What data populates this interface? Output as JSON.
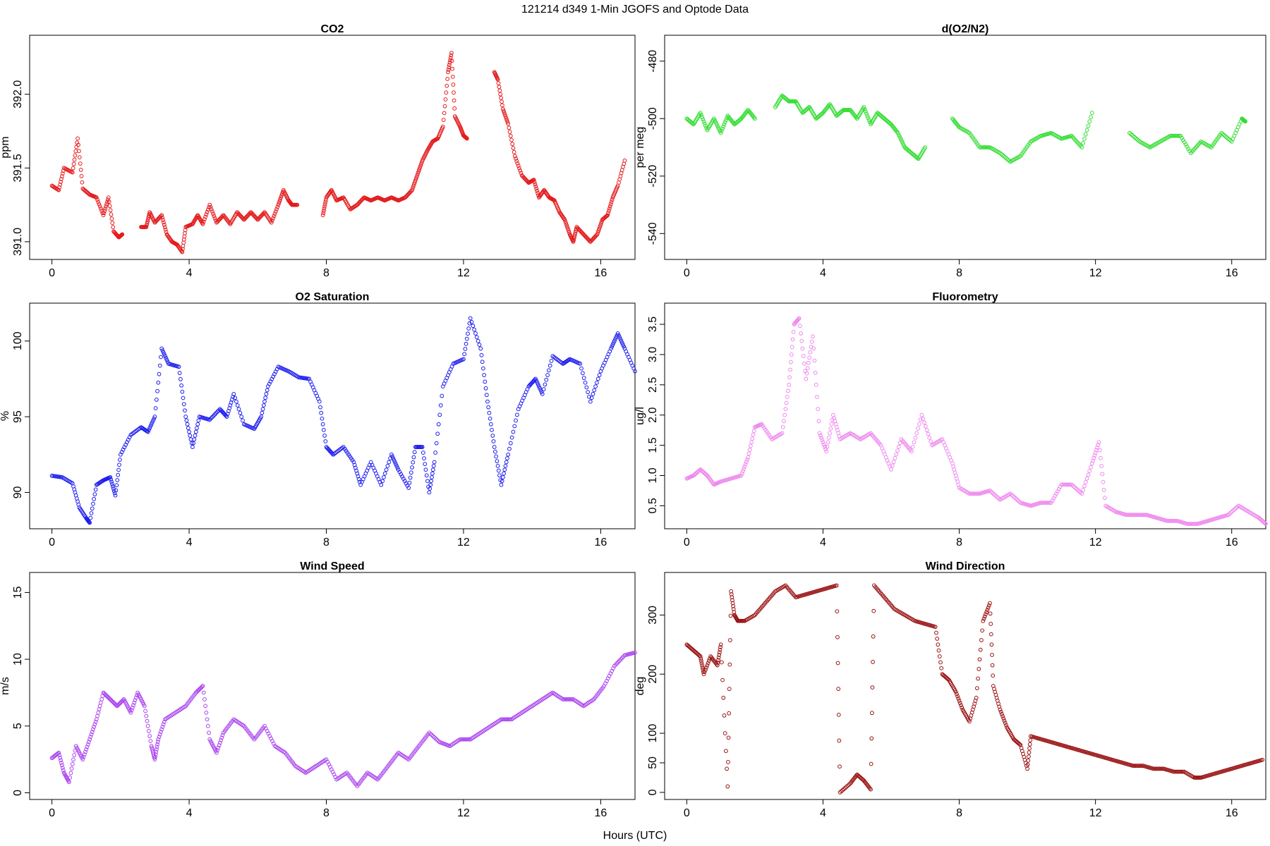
{
  "figure": {
    "title": "121214   d349   1-Min  JGOFS and Optode Data",
    "xlabel": "Hours (UTC)"
  },
  "chart_data": [
    {
      "id": "co2",
      "type": "scatter",
      "title": "CO2",
      "ylabel": "ppm",
      "color": "#e31a1c",
      "xlim": [
        -0.65,
        17
      ],
      "ylim": [
        390.88,
        392.4
      ],
      "xticks": [
        0,
        4,
        8,
        12,
        16
      ],
      "yticks": [
        391.0,
        391.5,
        392.0
      ],
      "ytick_labels": [
        "391.0",
        "391.5",
        "392.0"
      ],
      "series": [
        {
          "x": [
            0.0,
            0.2,
            0.35,
            0.6,
            0.75,
            0.9,
            1.1,
            1.3,
            1.5,
            1.65,
            1.8,
            1.95,
            2.05,
            2.6,
            2.75,
            2.85,
            3.0,
            3.2,
            3.35,
            3.5,
            3.65,
            3.8,
            3.9,
            4.1,
            4.25,
            4.4,
            4.6,
            4.8,
            5.0,
            5.2,
            5.4,
            5.6,
            5.8,
            6.0,
            6.2,
            6.4,
            6.6,
            6.75,
            6.9,
            7.0,
            7.15,
            7.9,
            8.0,
            8.15,
            8.3,
            8.5,
            8.7,
            8.9,
            9.1,
            9.3,
            9.5,
            9.7,
            9.9,
            10.1,
            10.3,
            10.5,
            10.65,
            10.8,
            10.95,
            11.1,
            11.25,
            11.4,
            11.55,
            11.65,
            11.75,
            11.9,
            12.0,
            12.1,
            12.9,
            13.0,
            13.15,
            13.3,
            13.5,
            13.7,
            13.9,
            14.05,
            14.2,
            14.35,
            14.5,
            14.65,
            14.8,
            14.95,
            15.1,
            15.2,
            15.3,
            15.5,
            15.7,
            15.9,
            16.05,
            16.2,
            16.35,
            16.5,
            16.7
          ],
          "y": [
            391.38,
            391.35,
            391.5,
            391.47,
            391.7,
            391.36,
            391.32,
            391.3,
            391.18,
            391.3,
            391.07,
            391.03,
            391.05,
            391.1,
            391.1,
            391.2,
            391.13,
            391.18,
            391.05,
            391.0,
            390.98,
            390.93,
            391.1,
            391.12,
            391.18,
            391.12,
            391.25,
            391.13,
            391.18,
            391.12,
            391.2,
            391.15,
            391.2,
            391.15,
            391.2,
            391.13,
            391.25,
            391.35,
            391.28,
            391.25,
            391.25,
            391.18,
            391.3,
            391.35,
            391.28,
            391.3,
            391.22,
            391.25,
            391.3,
            391.28,
            391.3,
            391.28,
            391.3,
            391.28,
            391.3,
            391.35,
            391.45,
            391.55,
            391.62,
            391.68,
            391.7,
            391.78,
            392.15,
            392.28,
            391.85,
            391.78,
            391.72,
            391.7,
            392.15,
            392.1,
            391.9,
            391.8,
            391.58,
            391.45,
            391.4,
            391.42,
            391.3,
            391.35,
            391.3,
            391.28,
            391.2,
            391.15,
            391.05,
            391.0,
            391.1,
            391.05,
            391.0,
            391.05,
            391.15,
            391.18,
            391.3,
            391.38,
            391.55
          ]
        }
      ]
    },
    {
      "id": "do2n2",
      "type": "scatter",
      "title": "d(O2/N2)",
      "ylabel": "per meg",
      "color": "#33dd33",
      "xlim": [
        -0.65,
        17
      ],
      "ylim": [
        -549,
        -471
      ],
      "xticks": [
        0,
        4,
        8,
        12,
        16
      ],
      "yticks": [
        -540,
        -520,
        -500,
        -480
      ],
      "ytick_labels": [
        "-540",
        "-520",
        "-500",
        "-480"
      ],
      "series": [
        {
          "x": [
            0.0,
            0.2,
            0.4,
            0.6,
            0.8,
            1.0,
            1.2,
            1.4,
            1.6,
            1.8,
            2.0,
            2.6,
            2.8,
            3.0,
            3.2,
            3.4,
            3.6,
            3.8,
            4.0,
            4.2,
            4.4,
            4.6,
            4.8,
            5.0,
            5.2,
            5.4,
            5.6,
            5.8,
            6.0,
            6.2,
            6.4,
            6.6,
            6.8,
            7.0,
            7.8,
            8.0,
            8.3,
            8.6,
            8.9,
            9.2,
            9.5,
            9.8,
            10.1,
            10.4,
            10.7,
            11.0,
            11.3,
            11.6,
            11.9,
            13.0,
            13.3,
            13.6,
            13.9,
            14.2,
            14.5,
            14.8,
            15.1,
            15.4,
            15.7,
            16.0,
            16.3,
            16.4
          ],
          "y": [
            -500,
            -502,
            -498,
            -504,
            -500,
            -505,
            -499,
            -502,
            -500,
            -497,
            -500,
            -496,
            -492,
            -494,
            -494,
            -498,
            -496,
            -500,
            -498,
            -495,
            -499,
            -497,
            -497,
            -500,
            -496,
            -502,
            -498,
            -500,
            -502,
            -505,
            -510,
            -512,
            -514,
            -510,
            -500,
            -503,
            -505,
            -510,
            -510,
            -512,
            -515,
            -513,
            -508,
            -506,
            -505,
            -507,
            -506,
            -510,
            -498,
            -505,
            -508,
            -510,
            -508,
            -506,
            -506,
            -512,
            -508,
            -510,
            -505,
            -508,
            -500,
            -501
          ]
        }
      ]
    },
    {
      "id": "o2sat",
      "type": "scatter",
      "title": "O2 Saturation",
      "ylabel": "%",
      "color": "#1a1aee",
      "xlim": [
        -0.65,
        17
      ],
      "ylim": [
        87.6,
        102.5
      ],
      "xticks": [
        0,
        4,
        8,
        12,
        16
      ],
      "yticks": [
        90,
        95,
        100
      ],
      "ytick_labels": [
        "90",
        "95",
        "100"
      ],
      "series": [
        {
          "x": [
            0.0,
            0.3,
            0.6,
            0.8,
            1.0,
            1.1,
            1.3,
            1.5,
            1.7,
            1.85,
            2.0,
            2.3,
            2.6,
            2.8,
            3.0,
            3.2,
            3.4,
            3.7,
            3.9,
            4.1,
            4.3,
            4.6,
            4.9,
            5.1,
            5.3,
            5.6,
            5.9,
            6.1,
            6.3,
            6.6,
            6.9,
            7.2,
            7.5,
            7.8,
            8.0,
            8.2,
            8.5,
            8.8,
            9.0,
            9.3,
            9.6,
            9.9,
            10.1,
            10.4,
            10.6,
            10.8,
            11.0,
            11.15,
            11.4,
            11.7,
            12.0,
            12.2,
            12.5,
            12.7,
            12.9,
            13.1,
            13.3,
            13.6,
            13.9,
            14.1,
            14.3,
            14.6,
            14.9,
            15.1,
            15.4,
            15.7,
            16.0,
            16.3,
            16.5,
            16.7,
            17.0
          ],
          "y": [
            91.1,
            91.0,
            90.6,
            89.0,
            88.3,
            88.0,
            90.5,
            90.8,
            91.0,
            89.8,
            92.5,
            93.8,
            94.3,
            94.0,
            95.0,
            99.5,
            98.5,
            98.3,
            95.0,
            93.0,
            95.0,
            94.8,
            95.5,
            95.0,
            96.5,
            94.5,
            94.2,
            95.0,
            97.0,
            98.3,
            98.0,
            97.6,
            97.5,
            96.0,
            93.0,
            92.5,
            93.0,
            92.0,
            90.5,
            92.0,
            90.5,
            92.5,
            91.5,
            90.3,
            93.0,
            93.0,
            90.0,
            92.0,
            97.0,
            98.5,
            98.8,
            101.5,
            99.5,
            96.0,
            93.0,
            90.5,
            92.5,
            95.5,
            97.0,
            97.5,
            96.5,
            99.0,
            98.5,
            98.8,
            98.5,
            96.0,
            98.0,
            99.5,
            100.5,
            99.5,
            98.0
          ]
        }
      ]
    },
    {
      "id": "fluor",
      "type": "scatter",
      "title": "Fluorometry",
      "ylabel": "ug/l",
      "color": "#ee88ee",
      "xlim": [
        -0.65,
        17
      ],
      "ylim": [
        0.12,
        3.85
      ],
      "xticks": [
        0,
        4,
        8,
        12,
        16
      ],
      "yticks": [
        0.5,
        1.0,
        1.5,
        2.0,
        2.5,
        3.0,
        3.5
      ],
      "ytick_labels": [
        "0.5",
        "1.0",
        "1.5",
        "2.0",
        "2.5",
        "3.0",
        "3.5"
      ],
      "series": [
        {
          "x": [
            0.0,
            0.2,
            0.4,
            0.6,
            0.8,
            1.0,
            1.3,
            1.6,
            1.8,
            2.0,
            2.2,
            2.5,
            2.8,
            3.0,
            3.15,
            3.3,
            3.5,
            3.7,
            3.9,
            4.1,
            4.3,
            4.5,
            4.8,
            5.1,
            5.4,
            5.7,
            6.0,
            6.3,
            6.6,
            6.9,
            7.2,
            7.5,
            7.8,
            8.0,
            8.3,
            8.6,
            8.9,
            9.2,
            9.5,
            9.8,
            10.1,
            10.4,
            10.7,
            11.0,
            11.3,
            11.6,
            11.9,
            12.1,
            12.3,
            12.6,
            12.9,
            13.2,
            13.5,
            13.8,
            14.1,
            14.4,
            14.7,
            15.0,
            15.3,
            15.6,
            15.9,
            16.2,
            16.5,
            16.8,
            17.0
          ],
          "y": [
            0.95,
            1.0,
            1.1,
            1.0,
            0.85,
            0.9,
            0.95,
            1.0,
            1.3,
            1.8,
            1.85,
            1.6,
            1.7,
            2.5,
            3.5,
            3.6,
            2.6,
            3.3,
            1.7,
            1.4,
            2.0,
            1.6,
            1.7,
            1.6,
            1.7,
            1.5,
            1.1,
            1.6,
            1.4,
            2.0,
            1.5,
            1.6,
            1.2,
            0.8,
            0.7,
            0.7,
            0.75,
            0.6,
            0.7,
            0.55,
            0.5,
            0.55,
            0.55,
            0.85,
            0.85,
            0.7,
            1.2,
            1.55,
            0.5,
            0.4,
            0.35,
            0.35,
            0.35,
            0.3,
            0.25,
            0.25,
            0.2,
            0.2,
            0.25,
            0.3,
            0.35,
            0.5,
            0.4,
            0.3,
            0.2
          ]
        }
      ]
    },
    {
      "id": "wspd",
      "type": "scatter",
      "title": "Wind Speed",
      "ylabel": "m/s",
      "color": "#aa44ee",
      "xlim": [
        -0.65,
        17
      ],
      "ylim": [
        -0.5,
        16.5
      ],
      "xticks": [
        0,
        4,
        8,
        12,
        16
      ],
      "yticks": [
        0,
        5,
        10,
        15
      ],
      "ytick_labels": [
        "0",
        "5",
        "10",
        "15"
      ],
      "series": [
        {
          "x": [
            0.0,
            0.2,
            0.35,
            0.5,
            0.7,
            0.9,
            1.1,
            1.3,
            1.5,
            1.7,
            1.9,
            2.1,
            2.3,
            2.5,
            2.7,
            2.9,
            3.0,
            3.1,
            3.3,
            3.6,
            3.9,
            4.2,
            4.4,
            4.6,
            4.8,
            5.0,
            5.3,
            5.6,
            5.9,
            6.2,
            6.5,
            6.8,
            7.1,
            7.4,
            7.7,
            8.0,
            8.3,
            8.6,
            8.9,
            9.2,
            9.5,
            9.8,
            10.1,
            10.4,
            10.7,
            11.0,
            11.3,
            11.6,
            11.9,
            12.2,
            12.5,
            12.8,
            13.1,
            13.4,
            13.7,
            14.0,
            14.3,
            14.6,
            14.9,
            15.2,
            15.5,
            15.8,
            16.1,
            16.4,
            16.7,
            17.0
          ],
          "y": [
            2.6,
            3.0,
            1.5,
            0.8,
            3.5,
            2.5,
            4.0,
            5.5,
            7.5,
            7.0,
            6.5,
            7.0,
            6.0,
            7.5,
            6.5,
            3.5,
            2.5,
            4.0,
            5.5,
            6.0,
            6.5,
            7.5,
            8.0,
            4.0,
            3.0,
            4.5,
            5.5,
            5.0,
            4.0,
            5.0,
            3.5,
            3.0,
            2.0,
            1.5,
            2.0,
            2.5,
            1.0,
            1.5,
            0.5,
            1.5,
            1.0,
            2.0,
            3.0,
            2.5,
            3.5,
            4.5,
            3.8,
            3.5,
            4.0,
            4.0,
            4.5,
            5.0,
            5.5,
            5.5,
            6.0,
            6.5,
            7.0,
            7.5,
            7.0,
            7.0,
            6.5,
            7.0,
            8.0,
            9.5,
            10.3,
            10.5
          ]
        }
      ]
    },
    {
      "id": "wdir",
      "type": "scatter",
      "title": "Wind Direction",
      "ylabel": "deg",
      "color": "#991111",
      "xlim": [
        -0.65,
        17
      ],
      "ylim": [
        -12,
        372
      ],
      "xticks": [
        0,
        4,
        8,
        12,
        16
      ],
      "yticks": [
        0,
        50,
        100,
        200,
        300
      ],
      "ytick_labels": [
        "0",
        "50",
        "100",
        "200",
        "300"
      ],
      "series": [
        {
          "x": [
            0.0,
            0.2,
            0.4,
            0.5,
            0.7,
            0.9,
            1.0,
            1.2,
            1.3,
            1.4,
            1.5,
            1.7,
            2.0,
            2.3,
            2.6,
            2.9,
            3.2,
            3.5,
            3.8,
            4.1,
            4.4,
            4.5,
            4.8,
            5.0,
            5.2,
            5.4,
            5.5,
            5.8,
            6.1,
            6.4,
            6.7,
            7.0,
            7.3,
            7.5,
            7.7,
            7.9,
            8.1,
            8.3,
            8.5,
            8.7,
            8.9,
            9.0,
            9.2,
            9.4,
            9.6,
            9.8,
            10.0,
            10.1,
            10.4,
            10.7,
            11.0,
            11.3,
            11.6,
            11.9,
            12.2,
            12.5,
            12.8,
            13.1,
            13.4,
            13.7,
            14.0,
            14.3,
            14.6,
            14.9,
            15.1,
            15.4,
            15.7,
            16.0,
            16.3,
            16.6,
            16.9
          ],
          "y": [
            250,
            240,
            230,
            200,
            230,
            215,
            250,
            10,
            340,
            300,
            290,
            290,
            300,
            320,
            340,
            350,
            330,
            335,
            340,
            345,
            350,
            0,
            15,
            30,
            20,
            5,
            350,
            330,
            310,
            300,
            290,
            285,
            280,
            200,
            190,
            170,
            140,
            120,
            160,
            290,
            320,
            180,
            140,
            110,
            90,
            80,
            40,
            95,
            90,
            85,
            80,
            75,
            70,
            65,
            60,
            55,
            50,
            45,
            45,
            40,
            40,
            35,
            35,
            25,
            25,
            30,
            35,
            40,
            45,
            50,
            55
          ]
        }
      ]
    }
  ]
}
